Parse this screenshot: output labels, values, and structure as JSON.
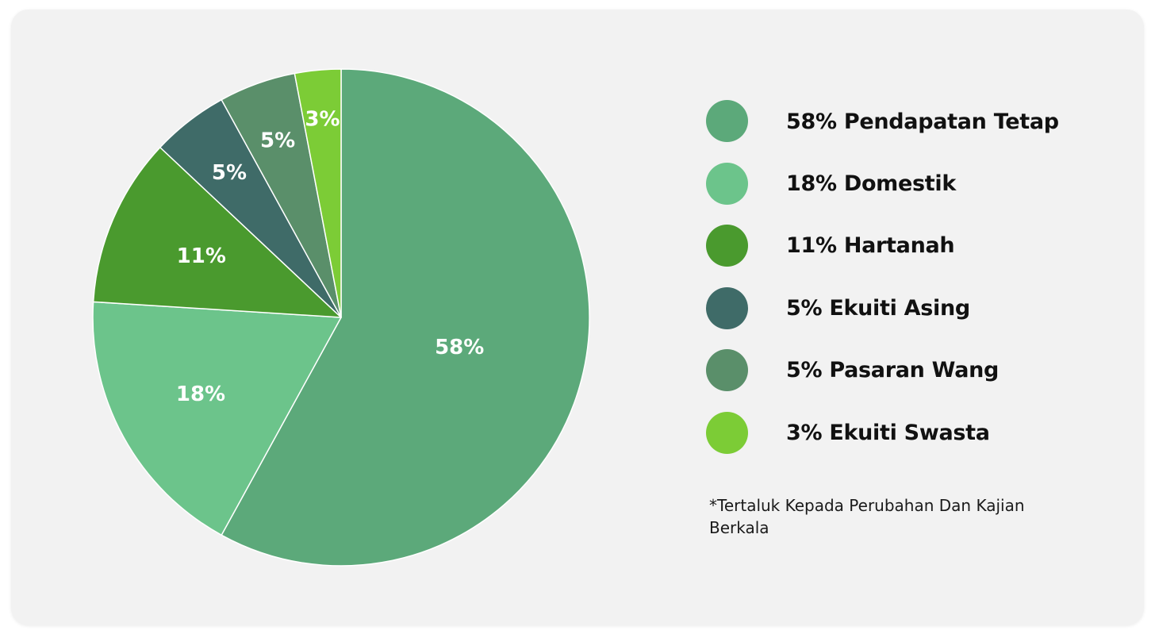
{
  "chart_data": {
    "type": "pie",
    "title": "",
    "slices": [
      {
        "label": "58% Pendapatan Tetap",
        "value": 58,
        "value_label": "58%",
        "color": "#5ca97a"
      },
      {
        "label": "18% Domestik",
        "value": 18,
        "value_label": "18%",
        "color": "#6cc48b"
      },
      {
        "label": "11% Hartanah",
        "value": 11,
        "value_label": "11%",
        "color": "#4a9a2e"
      },
      {
        "label": "5% Ekuiti Asing",
        "value": 5,
        "value_label": "5%",
        "color": "#3f6b68"
      },
      {
        "label": "5% Pasaran Wang",
        "value": 5,
        "value_label": "5%",
        "color": "#5a8f6a"
      },
      {
        "label": "3% Ekuiti Swasta",
        "value": 3,
        "value_label": "3%",
        "color": "#7ccc36"
      }
    ],
    "legend_position": "right",
    "start_angle_degrees": 0,
    "direction": "clockwise-from-top"
  },
  "footnote": "*Tertaluk Kepada Perubahan Dan Kajian Berkala"
}
